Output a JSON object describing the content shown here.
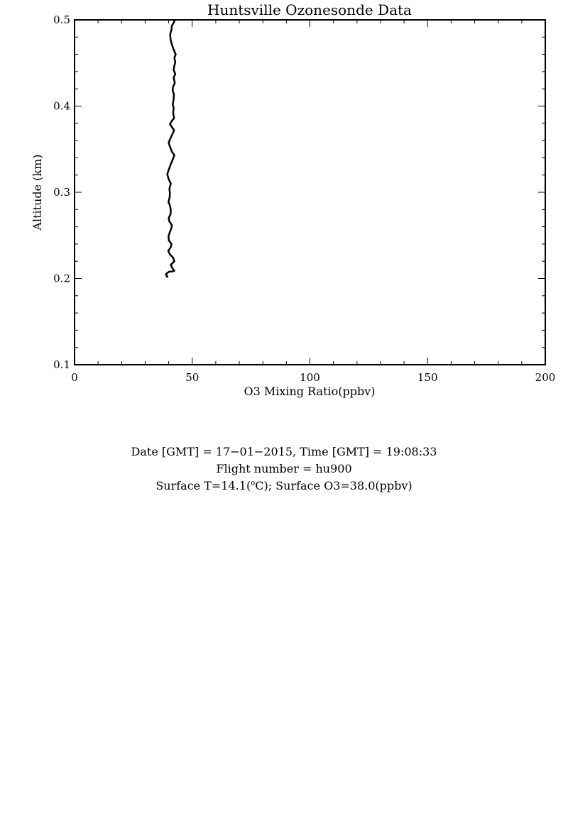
{
  "chart_data": {
    "type": "line",
    "title": "Huntsville Ozonesonde Data",
    "xlabel": "O3 Mixing Ratio(ppbv)",
    "ylabel": "Altitude (km)",
    "xlim": [
      0,
      200
    ],
    "ylim": [
      0.1,
      0.5
    ],
    "x_ticks": [
      "0",
      "50",
      "100",
      "150",
      "200"
    ],
    "y_ticks": [
      "0.1",
      "0.2",
      "0.3",
      "0.4",
      "0.5"
    ],
    "grid": false,
    "line_color": "#000000",
    "series": [
      {
        "points": [
          [
            38.8,
            0.203
          ],
          [
            39.5,
            0.202
          ],
          [
            38.8,
            0.205
          ],
          [
            40.2,
            0.208
          ],
          [
            41.3,
            0.208
          ],
          [
            42.4,
            0.209
          ],
          [
            41.5,
            0.212
          ],
          [
            40.9,
            0.216
          ],
          [
            42.4,
            0.22
          ],
          [
            41.9,
            0.224
          ],
          [
            40.5,
            0.228
          ],
          [
            39.8,
            0.232
          ],
          [
            40.8,
            0.236
          ],
          [
            41.2,
            0.24
          ],
          [
            40.1,
            0.244
          ],
          [
            39.9,
            0.249
          ],
          [
            40.5,
            0.254
          ],
          [
            41.1,
            0.258
          ],
          [
            41.4,
            0.262
          ],
          [
            40.3,
            0.266
          ],
          [
            40.0,
            0.27
          ],
          [
            40.8,
            0.275
          ],
          [
            40.9,
            0.279
          ],
          [
            40.6,
            0.284
          ],
          [
            39.9,
            0.289
          ],
          [
            40.4,
            0.294
          ],
          [
            40.5,
            0.299
          ],
          [
            40.3,
            0.304
          ],
          [
            40.9,
            0.31
          ],
          [
            39.9,
            0.316
          ],
          [
            39.4,
            0.321
          ],
          [
            40.0,
            0.326
          ],
          [
            40.8,
            0.332
          ],
          [
            41.7,
            0.338
          ],
          [
            42.4,
            0.343
          ],
          [
            41.4,
            0.347
          ],
          [
            40.4,
            0.354
          ],
          [
            40.0,
            0.358
          ],
          [
            40.8,
            0.363
          ],
          [
            41.7,
            0.368
          ],
          [
            42.3,
            0.372
          ],
          [
            41.3,
            0.376
          ],
          [
            40.5,
            0.379
          ],
          [
            41.4,
            0.383
          ],
          [
            42.3,
            0.386
          ],
          [
            41.9,
            0.392
          ],
          [
            42.1,
            0.398
          ],
          [
            41.7,
            0.402
          ],
          [
            42.1,
            0.408
          ],
          [
            42.2,
            0.414
          ],
          [
            41.7,
            0.418
          ],
          [
            41.8,
            0.422
          ],
          [
            42.6,
            0.427
          ],
          [
            42.1,
            0.433
          ],
          [
            42.8,
            0.437
          ],
          [
            42.1,
            0.442
          ],
          [
            42.4,
            0.447
          ],
          [
            42.8,
            0.451
          ],
          [
            42.4,
            0.456
          ],
          [
            43.0,
            0.46
          ],
          [
            42.5,
            0.463
          ],
          [
            41.9,
            0.467
          ],
          [
            41.3,
            0.472
          ],
          [
            40.8,
            0.477
          ],
          [
            40.6,
            0.483
          ],
          [
            41.2,
            0.489
          ],
          [
            41.3,
            0.493
          ],
          [
            42.2,
            0.497
          ],
          [
            42.6,
            0.5
          ]
        ]
      }
    ]
  },
  "info": {
    "line1": "Date [GMT] = 17−01−2015,  Time [GMT] = 19:08:33",
    "line2": "Flight number = hu900",
    "line3_pre": "Surface T=14.1(",
    "line3_sup": "o",
    "line3_post": "C); Surface O3=38.0(ppbv)"
  }
}
